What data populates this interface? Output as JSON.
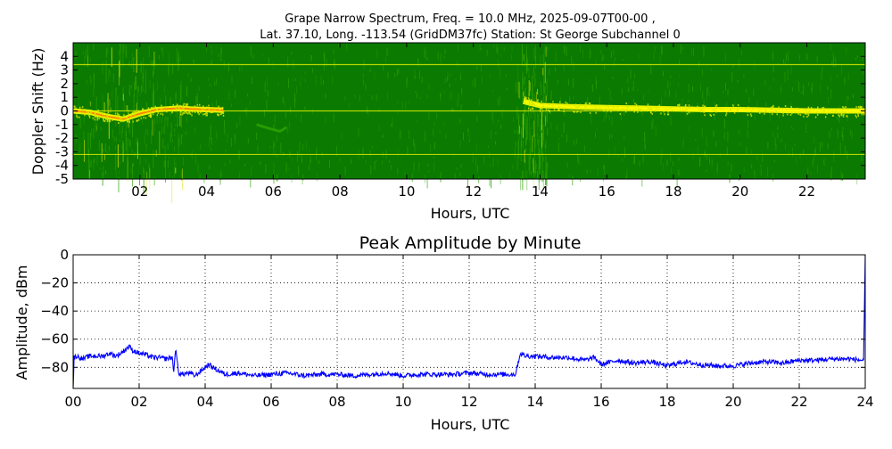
{
  "chart_data": [
    {
      "type": "heatmap",
      "title": "Grape Narrow Spectrum, Freq. = 10.0 MHz, 2025-09-07T00-00 ,",
      "subtitle": "Lat.  37.10, Long. -113.54 (GridDM37fc) Station: St George Subchannel 0",
      "xlabel": "Hours, UTC",
      "ylabel": "Doppler Shift (Hz)",
      "xlim": [
        0,
        23.75
      ],
      "ylim": [
        -5,
        5
      ],
      "xticks": [
        "02",
        "04",
        "06",
        "08",
        "10",
        "12",
        "14",
        "16",
        "18",
        "20",
        "22"
      ],
      "xtick_values": [
        2,
        4,
        6,
        8,
        10,
        12,
        14,
        16,
        18,
        20,
        22
      ],
      "yticks": [
        "4",
        "3",
        "2",
        "1",
        "0",
        "-1",
        "-2",
        "-3",
        "-4",
        "-5"
      ],
      "ytick_values": [
        4,
        3,
        2,
        1,
        0,
        -1,
        -2,
        -3,
        -4,
        -5
      ],
      "background_color": "#0a7a00",
      "colors": {
        "weak": "#2ca000",
        "medium": "#d8e800",
        "strong": "#ffff00",
        "peak": "#ff6a00"
      },
      "constant_lines_hz": [
        3.4,
        0.0,
        -3.2
      ],
      "traces": [
        {
          "name": "main",
          "points": [
            [
              0,
              0.0
            ],
            [
              0.5,
              -0.1
            ],
            [
              1.0,
              -0.4
            ],
            [
              1.5,
              -0.6
            ],
            [
              2.0,
              -0.2
            ],
            [
              2.5,
              0.1
            ],
            [
              3.2,
              0.2
            ],
            [
              3.5,
              0.15
            ],
            [
              4.0,
              0.1
            ],
            [
              4.5,
              0.05
            ]
          ]
        },
        {
          "name": "daytime",
          "points": [
            [
              13.5,
              0.7
            ],
            [
              14.0,
              0.4
            ],
            [
              15.0,
              0.3
            ],
            [
              16.0,
              0.25
            ],
            [
              17.0,
              0.2
            ],
            [
              18.0,
              0.15
            ],
            [
              19.0,
              0.1
            ],
            [
              20.0,
              0.1
            ],
            [
              21.0,
              0.05
            ],
            [
              22.0,
              0.0
            ],
            [
              23.0,
              0.0
            ],
            [
              23.75,
              0.0
            ]
          ]
        },
        {
          "name": "faint",
          "points": [
            [
              5.5,
              -1.0
            ],
            [
              5.9,
              -1.3
            ],
            [
              6.2,
              -1.5
            ],
            [
              6.4,
              -1.2
            ]
          ]
        }
      ]
    },
    {
      "type": "line",
      "title": "Peak Amplitude by Minute",
      "xlabel": "Hours, UTC",
      "ylabel": "Amplitude, dBm",
      "xlim": [
        0,
        24
      ],
      "ylim": [
        -95,
        0
      ],
      "xticks": [
        "00",
        "02",
        "04",
        "06",
        "08",
        "10",
        "12",
        "14",
        "16",
        "18",
        "20",
        "22",
        "24"
      ],
      "xtick_values": [
        0,
        2,
        4,
        6,
        8,
        10,
        12,
        14,
        16,
        18,
        20,
        22,
        24
      ],
      "yticks": [
        "0",
        "−20",
        "−40",
        "−60",
        "−80"
      ],
      "ytick_values": [
        0,
        -20,
        -40,
        -60,
        -80
      ],
      "grid": true,
      "series_color": "#0000ff",
      "series": [
        {
          "x": [
            0,
            0.03,
            0.1,
            0.3,
            0.5,
            0.7,
            0.9,
            1.1,
            1.3,
            1.5,
            1.7,
            1.8,
            2.0,
            2.2,
            2.4,
            2.6,
            2.8,
            3.0,
            3.05,
            3.1,
            3.2,
            3.3,
            3.5,
            3.7,
            3.9,
            4.1,
            4.3,
            4.6,
            5.0,
            5.5,
            6.0,
            6.5,
            7.0,
            7.5,
            8.0,
            8.5,
            9.0,
            9.5,
            10.0,
            10.5,
            11.0,
            11.5,
            12.0,
            12.5,
            13.0,
            13.4,
            13.55,
            13.7,
            14.0,
            14.5,
            15.0,
            15.5,
            15.8,
            16.0,
            16.5,
            17.0,
            17.5,
            18.0,
            18.5,
            19.0,
            19.5,
            20.0,
            20.5,
            21.0,
            21.5,
            22.0,
            22.5,
            23.0,
            23.5,
            23.9,
            23.95,
            24.0
          ],
          "values": [
            -95,
            -73,
            -72,
            -74,
            -72,
            -72,
            -72,
            -70,
            -72,
            -69,
            -65,
            -68,
            -70,
            -71,
            -73,
            -73,
            -74,
            -73,
            -83,
            -67,
            -84,
            -85,
            -84,
            -86,
            -82,
            -78,
            -81,
            -85,
            -84,
            -86,
            -85,
            -84,
            -86,
            -85,
            -85,
            -86,
            -85,
            -84,
            -86,
            -85,
            -85,
            -85,
            -84,
            -85,
            -85,
            -85,
            -70,
            -72,
            -72,
            -73,
            -73,
            -75,
            -73,
            -78,
            -75,
            -77,
            -76,
            -79,
            -76,
            -78,
            -79,
            -79,
            -77,
            -76,
            -77,
            -75,
            -75,
            -74,
            -74,
            -75,
            -75,
            0
          ]
        }
      ]
    }
  ]
}
